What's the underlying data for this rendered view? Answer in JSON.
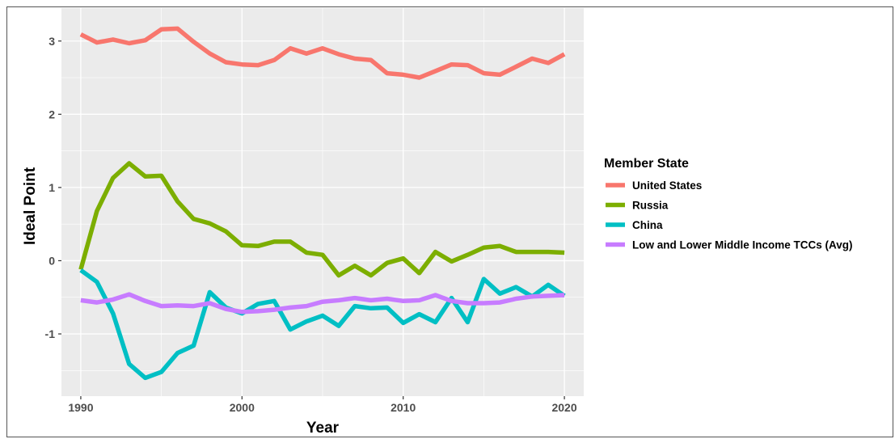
{
  "chart_data": {
    "type": "line",
    "xlabel": "Year",
    "ylabel": "Ideal Point",
    "xlim": [
      1988.8,
      2021.2
    ],
    "ylim": [
      -1.85,
      3.45
    ],
    "x_ticks": [
      1990,
      2000,
      2010,
      2020
    ],
    "y_ticks": [
      -1,
      0,
      1,
      2,
      3
    ],
    "grid": true,
    "legend_title": "Member State",
    "legend_position": "right",
    "x": [
      1990,
      1991,
      1992,
      1993,
      1994,
      1995,
      1996,
      1997,
      1998,
      1999,
      2000,
      2001,
      2002,
      2003,
      2004,
      2005,
      2006,
      2007,
      2008,
      2009,
      2010,
      2011,
      2012,
      2013,
      2014,
      2015,
      2016,
      2017,
      2018,
      2019,
      2020
    ],
    "series": [
      {
        "name": "United States",
        "color": "#F8766D",
        "values": [
          3.09,
          2.98,
          3.02,
          2.97,
          3.01,
          3.16,
          3.17,
          2.99,
          2.83,
          2.71,
          2.68,
          2.67,
          2.74,
          2.9,
          2.83,
          2.9,
          2.82,
          2.76,
          2.74,
          2.56,
          2.54,
          2.5,
          2.59,
          2.68,
          2.67,
          2.56,
          2.54,
          2.65,
          2.76,
          2.7,
          2.82
        ]
      },
      {
        "name": "Russia",
        "color": "#7CAE00",
        "values": [
          -0.12,
          0.68,
          1.13,
          1.33,
          1.15,
          1.16,
          0.81,
          0.57,
          0.51,
          0.4,
          0.21,
          0.2,
          0.26,
          0.26,
          0.11,
          0.08,
          -0.2,
          -0.07,
          -0.2,
          -0.03,
          0.03,
          -0.17,
          0.12,
          -0.01,
          0.08,
          0.18,
          0.2,
          0.12,
          0.12,
          0.12,
          0.11
        ]
      },
      {
        "name": "China",
        "color": "#00BFC4",
        "values": [
          -0.13,
          -0.29,
          -0.72,
          -1.41,
          -1.6,
          -1.52,
          -1.26,
          -1.16,
          -0.43,
          -0.64,
          -0.72,
          -0.59,
          -0.55,
          -0.94,
          -0.83,
          -0.75,
          -0.89,
          -0.62,
          -0.65,
          -0.64,
          -0.85,
          -0.73,
          -0.84,
          -0.51,
          -0.84,
          -0.25,
          -0.45,
          -0.36,
          -0.49,
          -0.33,
          -0.48
        ]
      },
      {
        "name": "Low and Lower Middle Income TCCs (Avg)",
        "color": "#C77CFF",
        "values": [
          -0.54,
          -0.57,
          -0.53,
          -0.46,
          -0.55,
          -0.62,
          -0.61,
          -0.62,
          -0.58,
          -0.66,
          -0.7,
          -0.69,
          -0.67,
          -0.64,
          -0.62,
          -0.56,
          -0.54,
          -0.51,
          -0.54,
          -0.52,
          -0.55,
          -0.54,
          -0.47,
          -0.55,
          -0.58,
          -0.58,
          -0.57,
          -0.52,
          -0.49,
          -0.48,
          -0.47
        ]
      }
    ]
  }
}
